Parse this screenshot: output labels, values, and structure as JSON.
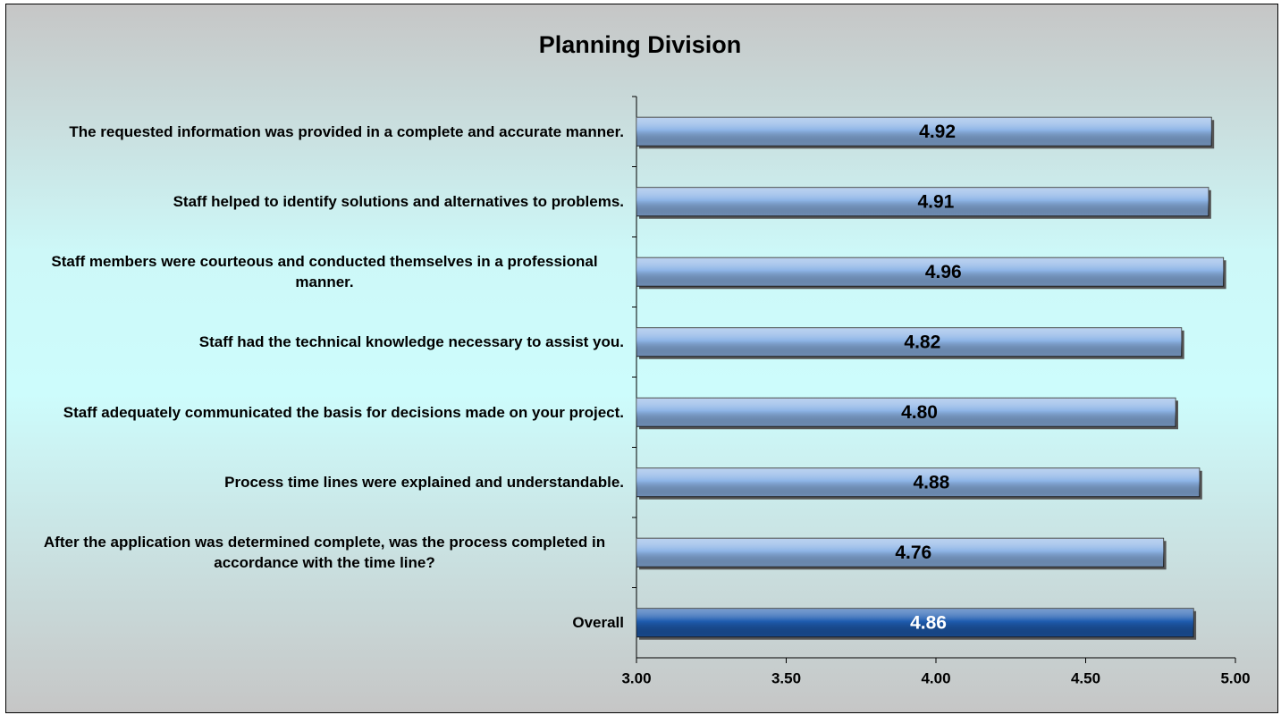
{
  "chart_data": {
    "type": "barh",
    "title": "Planning Division",
    "categories": [
      "The requested information was provided in a complete and accurate manner.",
      "Staff helped to identify solutions and alternatives to problems.",
      "Staff members were courteous and conducted themselves in a professional manner.",
      "Staff had the technical knowledge necessary to assist you.",
      "Staff adequately communicated the basis for decisions made on your project.",
      "Process time lines were explained and understandable.",
      "After the application was determined complete, was the process completed in accordance with the time line?",
      "Overall"
    ],
    "values": [
      4.92,
      4.91,
      4.96,
      4.82,
      4.8,
      4.88,
      4.76,
      4.86
    ],
    "value_labels": [
      "4.92",
      "4.91",
      "4.96",
      "4.82",
      "4.80",
      "4.88",
      "4.76",
      "4.86"
    ],
    "colors": [
      "#8db4e6",
      "#8db4e6",
      "#8db4e6",
      "#8db4e6",
      "#8db4e6",
      "#8db4e6",
      "#8db4e6",
      "#1f5cb0"
    ],
    "xlim": [
      3,
      5
    ],
    "xticks": [
      {
        "value": 3,
        "label": "3.00"
      },
      {
        "value": 3.5,
        "label": "3.50"
      },
      {
        "value": 4,
        "label": "4.00"
      },
      {
        "value": 4.5,
        "label": "4.50"
      },
      {
        "value": 5,
        "label": "5.00"
      }
    ],
    "grid": false
  }
}
